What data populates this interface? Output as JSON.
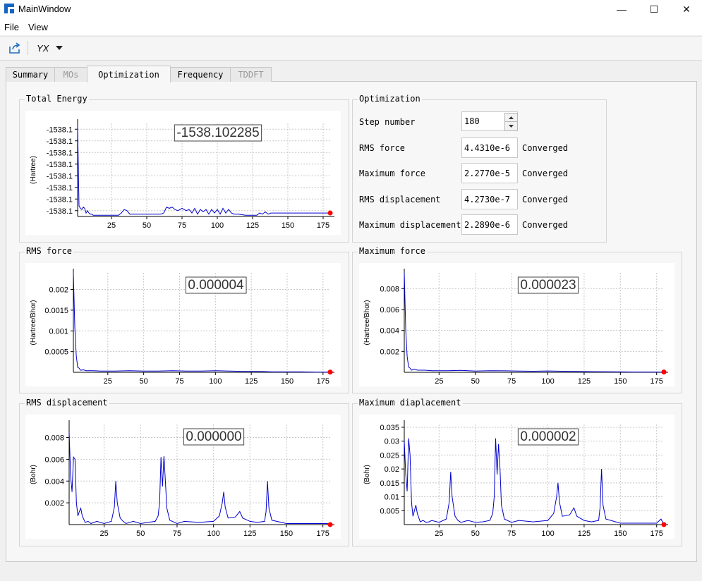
{
  "window": {
    "title": "MainWindow",
    "minimize_glyph": "—",
    "maximize_glyph": "☐",
    "close_glyph": "✕"
  },
  "menubar": {
    "items": [
      "File",
      "View"
    ]
  },
  "toolbar": {
    "export_icon": "export-icon",
    "combo_value": "YX"
  },
  "tabs": [
    {
      "label": "Summary",
      "state": "normal"
    },
    {
      "label": "MOs",
      "state": "disabled"
    },
    {
      "label": "Optimization",
      "state": "active"
    },
    {
      "label": "Frequency",
      "state": "normal"
    },
    {
      "label": "TDDFT",
      "state": "disabled"
    }
  ],
  "optimization": {
    "title": "Optimization",
    "step_label": "Step number",
    "step_value": "180",
    "rows": [
      {
        "label": "RMS force",
        "value": "4.4310e-6",
        "status": "Converged"
      },
      {
        "label": "Maximum force",
        "value": "2.2770e-5",
        "status": "Converged"
      },
      {
        "label": "RMS displacement",
        "value": "4.2730e-7",
        "status": "Converged"
      },
      {
        "label": "Maximum displacement",
        "value": "2.2890e-6",
        "status": "Converged"
      }
    ]
  },
  "colors": {
    "series": "#0000cc",
    "marker": "#ff0000",
    "grid": "#c8c8c8"
  },
  "chart_data": [
    {
      "type": "line",
      "group_title": "Total Energy",
      "ylabel": "(Hartree)",
      "current_value": "-1538.102285",
      "xticks": [
        25,
        50,
        75,
        100,
        125,
        150,
        175
      ],
      "yticks": [
        "-1538.1",
        "-1538.1",
        "-1538.1",
        "-1538.1",
        "-1538.1",
        "-1538.1",
        "-1538.1",
        "-1538.1"
      ],
      "xlim": [
        1,
        180
      ],
      "ylim": [
        0,
        8
      ],
      "y_display": "levels",
      "x": [
        1,
        2,
        3,
        4,
        5,
        6,
        7,
        8,
        9,
        10,
        11,
        12,
        13,
        15,
        20,
        25,
        30,
        32,
        34,
        36,
        38,
        40,
        45,
        50,
        55,
        60,
        62,
        64,
        66,
        68,
        70,
        72,
        75,
        78,
        80,
        82,
        84,
        86,
        88,
        90,
        92,
        94,
        96,
        98,
        100,
        102,
        104,
        106,
        108,
        110,
        112,
        115,
        120,
        125,
        128,
        130,
        132,
        134,
        136,
        138,
        140,
        145,
        150,
        155,
        160,
        165,
        170,
        175,
        178,
        180
      ],
      "y": [
        7.8,
        0.9,
        0.7,
        0.6,
        0.8,
        0.7,
        0.3,
        0.5,
        0.3,
        0.2,
        0.2,
        0.1,
        0.1,
        0.1,
        0.1,
        0.1,
        0.1,
        0.3,
        0.6,
        0.5,
        0.2,
        0.2,
        0.2,
        0.2,
        0.2,
        0.2,
        0.3,
        0.8,
        0.7,
        0.8,
        0.6,
        0.5,
        0.7,
        0.5,
        0.6,
        0.3,
        0.7,
        0.2,
        0.6,
        0.4,
        0.6,
        0.2,
        0.6,
        0.3,
        0.6,
        0.2,
        0.7,
        0.3,
        0.6,
        0.3,
        0.2,
        0.2,
        0.1,
        0.1,
        0.1,
        0.3,
        0.2,
        0.4,
        0.2,
        0.3,
        0.3,
        0.3,
        0.3,
        0.3,
        0.3,
        0.3,
        0.3,
        0.3,
        0.3,
        0.3
      ]
    },
    {
      "type": "line",
      "group_title": "RMS force",
      "ylabel": "(Hartree/Bhor)",
      "current_value": "0.000004",
      "xticks": [
        25,
        50,
        75,
        100,
        125,
        150,
        175
      ],
      "yticks": [
        0.0005,
        0.001,
        0.0015,
        0.002
      ],
      "xlim": [
        1,
        180
      ],
      "ylim": [
        0,
        0.0024
      ],
      "x": [
        1,
        2,
        3,
        4,
        5,
        6,
        8,
        10,
        15,
        20,
        30,
        40,
        50,
        60,
        70,
        80,
        90,
        100,
        110,
        120,
        130,
        140,
        150,
        160,
        170,
        175,
        180
      ],
      "y": [
        0.0024,
        0.0011,
        0.0004,
        0.00012,
        0.0001,
        5e-05,
        6e-05,
        4e-05,
        4e-05,
        3e-05,
        3e-05,
        4e-05,
        3e-05,
        3e-05,
        4e-05,
        3e-05,
        3e-05,
        4e-05,
        3e-05,
        2e-05,
        2e-05,
        1e-05,
        1e-05,
        1e-05,
        5e-06,
        5e-06,
        4e-06
      ]
    },
    {
      "type": "line",
      "group_title": "Maximum force",
      "ylabel": "(Hartree/Bhor)",
      "current_value": "0.000023",
      "xticks": [
        25,
        50,
        75,
        100,
        125,
        150,
        175
      ],
      "yticks": [
        0.002,
        0.004,
        0.006,
        0.008
      ],
      "xlim": [
        1,
        180
      ],
      "ylim": [
        0,
        0.0095
      ],
      "x": [
        1,
        2,
        3,
        4,
        5,
        6,
        8,
        10,
        15,
        20,
        30,
        40,
        50,
        60,
        70,
        80,
        90,
        100,
        110,
        120,
        130,
        140,
        150,
        160,
        170,
        175,
        180
      ],
      "y": [
        0.0095,
        0.004,
        0.0015,
        0.0005,
        0.0004,
        0.0002,
        0.0003,
        0.0002,
        0.0002,
        0.00015,
        0.00015,
        0.00018,
        0.00012,
        0.00015,
        0.00014,
        0.00012,
        0.0001,
        0.00013,
        0.0001,
        8e-05,
        6e-05,
        5e-05,
        4e-05,
        3e-05,
        3e-05,
        3e-05,
        2.3e-05
      ]
    },
    {
      "type": "line",
      "group_title": "RMS displacement",
      "ylabel": "(Bohr)",
      "current_value": "0.000000",
      "xticks": [
        25,
        50,
        75,
        100,
        125,
        150,
        175
      ],
      "yticks": [
        0.002,
        0.004,
        0.006,
        0.008
      ],
      "xlim": [
        1,
        180
      ],
      "ylim": [
        0,
        0.0092
      ],
      "x": [
        1,
        2,
        3,
        4,
        5,
        6,
        7,
        8,
        9,
        10,
        12,
        14,
        16,
        18,
        20,
        25,
        30,
        32,
        33,
        34,
        36,
        38,
        40,
        45,
        50,
        55,
        60,
        62,
        63,
        64,
        65,
        66,
        67,
        68,
        70,
        75,
        80,
        90,
        100,
        104,
        106,
        107,
        108,
        110,
        115,
        118,
        120,
        125,
        130,
        135,
        136,
        137,
        138,
        140,
        150,
        160,
        170,
        175,
        178,
        180
      ],
      "y": [
        0.0085,
        0.0045,
        0.003,
        0.0062,
        0.006,
        0.002,
        0.0008,
        0.0012,
        0.0015,
        0.0008,
        0.0002,
        0.0003,
        0.0001,
        0.0002,
        0.0003,
        0.0001,
        0.0003,
        0.0016,
        0.004,
        0.002,
        0.0006,
        0.0003,
        0.0001,
        0.0003,
        0.0001,
        0.0002,
        0.0003,
        0.0008,
        0.002,
        0.0062,
        0.0035,
        0.0063,
        0.004,
        0.0015,
        0.0004,
        0.0001,
        0.0003,
        0.0002,
        0.0003,
        0.0008,
        0.002,
        0.003,
        0.0016,
        0.0006,
        0.0007,
        0.0012,
        0.0006,
        0.0003,
        0.0002,
        0.0003,
        0.0012,
        0.004,
        0.0015,
        0.0004,
        0.0001,
        0.0001,
        0.0001,
        0.0001,
        0.0001,
        4.3e-07
      ]
    },
    {
      "type": "line",
      "group_title": "Maximum diaplacement",
      "ylabel": "(Bohr)",
      "current_value": "0.000002",
      "xticks": [
        25,
        50,
        75,
        100,
        125,
        150,
        175
      ],
      "yticks": [
        0.005,
        0.01,
        0.015,
        0.02,
        0.025,
        0.03,
        0.035
      ],
      "xlim": [
        1,
        180
      ],
      "ylim": [
        0,
        0.036
      ],
      "x": [
        1,
        2,
        3,
        4,
        5,
        6,
        7,
        8,
        9,
        10,
        12,
        14,
        16,
        18,
        20,
        25,
        30,
        32,
        33,
        34,
        36,
        38,
        40,
        45,
        50,
        55,
        60,
        62,
        63,
        64,
        65,
        66,
        67,
        68,
        70,
        75,
        80,
        90,
        100,
        104,
        106,
        107,
        108,
        110,
        115,
        118,
        120,
        125,
        130,
        135,
        136,
        137,
        138,
        140,
        150,
        160,
        170,
        175,
        178,
        180
      ],
      "y": [
        0.03,
        0.018,
        0.012,
        0.031,
        0.025,
        0.008,
        0.003,
        0.005,
        0.007,
        0.004,
        0.001,
        0.0015,
        0.0008,
        0.001,
        0.0015,
        0.0008,
        0.002,
        0.008,
        0.019,
        0.01,
        0.003,
        0.0015,
        0.0008,
        0.0015,
        0.0008,
        0.001,
        0.0015,
        0.004,
        0.01,
        0.031,
        0.018,
        0.029,
        0.02,
        0.007,
        0.002,
        0.0008,
        0.0015,
        0.001,
        0.0015,
        0.004,
        0.01,
        0.015,
        0.008,
        0.003,
        0.0035,
        0.006,
        0.003,
        0.0015,
        0.001,
        0.0015,
        0.006,
        0.02,
        0.007,
        0.002,
        0.0005,
        0.0005,
        0.0005,
        0.0005,
        0.002,
        2.3e-06
      ]
    }
  ]
}
